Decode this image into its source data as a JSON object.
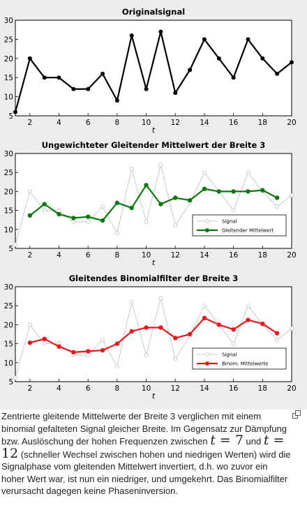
{
  "chart_data": [
    {
      "type": "line",
      "title": "Originalsignal",
      "xlabel": "t",
      "ylabel": "",
      "xlim": [
        1,
        20
      ],
      "ylim": [
        5,
        30
      ],
      "xticks": [
        2,
        4,
        6,
        8,
        10,
        12,
        14,
        16,
        18,
        20
      ],
      "yticks": [
        5,
        10,
        15,
        20,
        25,
        30
      ],
      "grid": false,
      "series": [
        {
          "x": [
            1,
            2,
            3,
            4,
            5,
            6,
            7,
            8,
            9,
            10,
            11,
            12,
            13,
            14,
            15,
            16,
            17,
            18,
            19,
            20
          ],
          "values": [
            6,
            20,
            15,
            15,
            12,
            12,
            16,
            9,
            26,
            12,
            27,
            11,
            17,
            25,
            20,
            15,
            25,
            20,
            16,
            19
          ],
          "color": "#000000",
          "role": "signal"
        }
      ]
    },
    {
      "type": "line",
      "title": "Ungewichteter Gleitender Mittelwert der Breite 3",
      "xlabel": "t",
      "ylabel": "",
      "xlim": [
        1,
        20
      ],
      "ylim": [
        5,
        30
      ],
      "xticks": [
        2,
        4,
        6,
        8,
        10,
        12,
        14,
        16,
        18,
        20
      ],
      "yticks": [
        5,
        10,
        15,
        20,
        25,
        30
      ],
      "grid": false,
      "legend_position": "bottom-right",
      "series": [
        {
          "name": "Signal",
          "x": [
            1,
            2,
            3,
            4,
            5,
            6,
            7,
            8,
            9,
            10,
            11,
            12,
            13,
            14,
            15,
            16,
            17,
            18,
            19,
            20
          ],
          "values": [
            6,
            20,
            15,
            15,
            12,
            12,
            16,
            9,
            26,
            12,
            27,
            11,
            17,
            25,
            20,
            15,
            25,
            20,
            16,
            19
          ],
          "color": "#c8c8c8",
          "role": "signal"
        },
        {
          "name": "Gleitender Mittelwert",
          "x": [
            2,
            3,
            4,
            5,
            6,
            7,
            8,
            9,
            10,
            11,
            12,
            13,
            14,
            15,
            16,
            17,
            18,
            19
          ],
          "values": [
            13.67,
            16.67,
            14,
            13,
            13.33,
            12.33,
            17,
            15.67,
            21.67,
            16.67,
            18.33,
            17.67,
            20.67,
            20,
            20,
            20,
            20.33,
            18.33
          ],
          "color": "#0b7a0b",
          "role": "smooth"
        }
      ]
    },
    {
      "type": "line",
      "title": "Gleitendes Binomialfilter der Breite 3",
      "xlabel": "t",
      "ylabel": "",
      "xlim": [
        1,
        20
      ],
      "ylim": [
        5,
        30
      ],
      "xticks": [
        2,
        4,
        6,
        8,
        10,
        12,
        14,
        16,
        18,
        20
      ],
      "yticks": [
        5,
        10,
        15,
        20,
        25,
        30
      ],
      "grid": false,
      "legend_position": "bottom-right",
      "series": [
        {
          "name": "Signal",
          "x": [
            1,
            2,
            3,
            4,
            5,
            6,
            7,
            8,
            9,
            10,
            11,
            12,
            13,
            14,
            15,
            16,
            17,
            18,
            19,
            20
          ],
          "values": [
            6,
            20,
            15,
            15,
            12,
            12,
            16,
            9,
            26,
            12,
            27,
            11,
            17,
            25,
            20,
            15,
            25,
            20,
            16,
            19
          ],
          "color": "#c8c8c8",
          "role": "signal"
        },
        {
          "name": "Binom. Mittelwerte",
          "x": [
            2,
            3,
            4,
            5,
            6,
            7,
            8,
            9,
            10,
            11,
            12,
            13,
            14,
            15,
            16,
            17,
            18,
            19
          ],
          "values": [
            15.25,
            16.25,
            14.25,
            12.75,
            13,
            13.25,
            15,
            18.25,
            19.25,
            19.25,
            16.5,
            17.5,
            21.75,
            20,
            18.75,
            21.25,
            20.25,
            17.75
          ],
          "color": "#e8181b",
          "role": "smooth"
        }
      ]
    }
  ],
  "caption": {
    "part1": "Zentrierte gleitende Mittelwerte der Breite 3 verglichen mit einem binomial gefalteten Signal gleicher Breite. Im Gegensatz zur Dämpfung bzw. Auslöschung der hohen Frequenzen zwischen ",
    "math1_var": "t",
    "math1_eq": " = 7",
    "word_und": " und ",
    "math2_var": "t",
    "math2_eq": " = 12",
    "part2": " (schneller Wechsel zwischen hohen und niedrigen Werten) wird die Signalphase vom gleitenden Mittelwert invertiert, d.h. wo zuvor ein hoher Wert war, ist nun ein niedriger, und umgekehrt. Das Binomialfilter verursacht dagegen keine Phaseninversion."
  },
  "icons": {
    "magnify": "magnify-clip-icon"
  }
}
